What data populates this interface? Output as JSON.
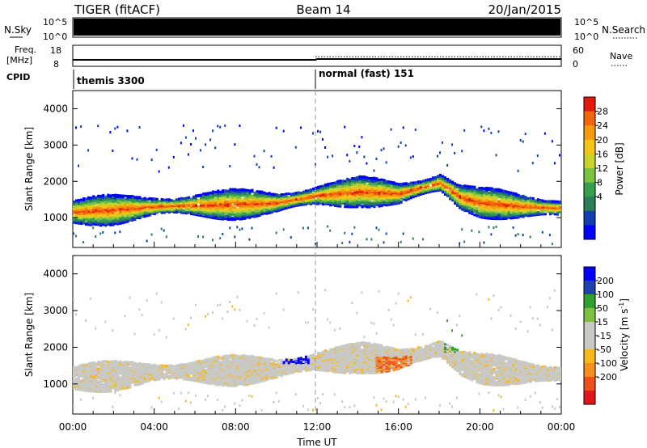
{
  "header": {
    "title": "TIGER (fitACF)",
    "beam": "Beam 14",
    "date": "20/Jan/2015"
  },
  "status_panels": {
    "nsky_label": "N.Sky",
    "nsky_ticks": [
      "10^5",
      "10^0"
    ],
    "nsearch_label": "N.Search",
    "nsearch_ticks": [
      "10^5",
      "10^0"
    ],
    "freq_label_line1": "Freq.",
    "freq_label_line2": "[MHz]",
    "freq_ticks": [
      "18",
      "8"
    ],
    "nave_label": "Nave",
    "nave_ticks": [
      "60",
      "0"
    ],
    "cpid_label": "CPID",
    "cpid_segments": [
      {
        "label": "themis 3300",
        "start": "00:00",
        "end": "12:00"
      },
      {
        "label": "normal (fast) 151",
        "start": "12:00",
        "end": "00:00"
      }
    ]
  },
  "chart_data": [
    {
      "type": "heatmap",
      "name": "Power",
      "ylabel": "Slant Range [km]",
      "xlim_hours": [
        0,
        24
      ],
      "ylim": [
        180,
        4500
      ],
      "yticks": [
        "1000",
        "2000",
        "3000",
        "4000"
      ],
      "colorbar_label": "Power [dB]",
      "colorbar_ticks": [
        "28",
        "24",
        "20",
        "16",
        "12",
        "8",
        "4"
      ],
      "colorbar_range": [
        0,
        30
      ],
      "colors": [
        "#0000ff",
        "#1040b0",
        "#2e7d5a",
        "#34a050",
        "#7cc242",
        "#c8d22a",
        "#f4c418",
        "#f59a0e",
        "#f1660a",
        "#e21a0a"
      ],
      "main_band_km": [
        [
          0,
          1200
        ],
        [
          2,
          1250
        ],
        [
          4,
          1350
        ],
        [
          6,
          1380
        ],
        [
          8,
          1400
        ],
        [
          10,
          1450
        ],
        [
          11,
          1550
        ],
        [
          12,
          1650
        ],
        [
          14,
          1750
        ],
        [
          16,
          1700
        ],
        [
          18,
          2000
        ],
        [
          19,
          1600
        ],
        [
          20,
          1450
        ],
        [
          22,
          1350
        ],
        [
          24,
          1300
        ]
      ]
    },
    {
      "type": "heatmap",
      "name": "Velocity",
      "ylabel": "Slant Range [km]",
      "xlim_hours": [
        0,
        24
      ],
      "ylim": [
        180,
        4500
      ],
      "yticks": [
        "1000",
        "2000",
        "3000",
        "4000"
      ],
      "xticks": [
        "00:00",
        "04:00",
        "08:00",
        "12:00",
        "16:00",
        "20:00",
        "00:00"
      ],
      "xlabel": "Time UT",
      "colorbar_label": "Velocity [m s^-1]",
      "colorbar_ticks": [
        "200",
        "100",
        "50",
        "15",
        "-15",
        "-50",
        "-100",
        "-200"
      ],
      "colorbar_range": [
        -250,
        250
      ],
      "colors": [
        "#e0161b",
        "#f0501a",
        "#f5901e",
        "#f7b81e",
        "#c8c8c4",
        "#c8c8c4",
        "#80c040",
        "#30a030",
        "#2040b0",
        "#0000ff"
      ],
      "notable_features": [
        {
          "label": "positive",
          "time_hours": 10.8,
          "range_km": 1800
        },
        {
          "label": "negative",
          "time_hours": 15.5,
          "range_km": 1600
        }
      ]
    }
  ]
}
